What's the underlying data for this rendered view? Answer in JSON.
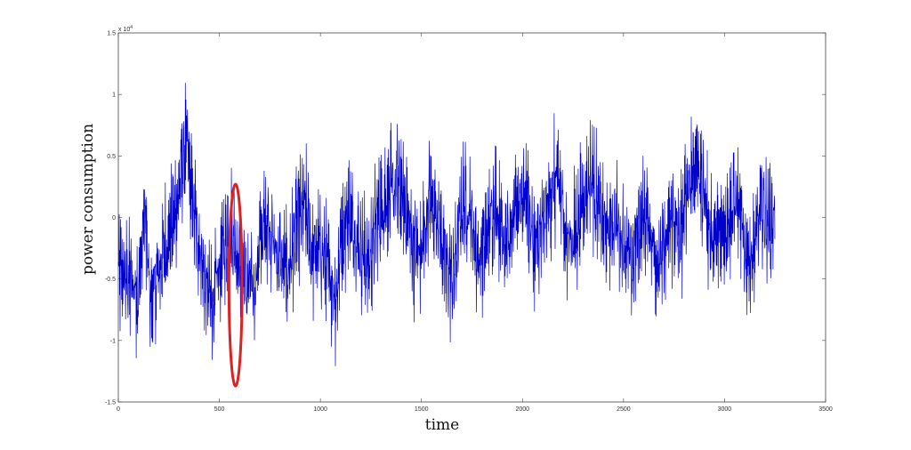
{
  "chart_data": {
    "type": "line",
    "title": "",
    "xlabel": "time",
    "ylabel": "power consumption",
    "y_multiplier_label": "x 10",
    "y_multiplier_exponent": "4",
    "xlim": [
      0,
      3500
    ],
    "ylim": [
      -1.5,
      1.5
    ],
    "xticks": [
      0,
      500,
      1000,
      1500,
      2000,
      2500,
      3000,
      3500
    ],
    "yticks": [
      -1.5,
      -1,
      -0.5,
      0,
      0.5,
      1,
      1.5
    ],
    "xtick_labels": [
      "0",
      "500",
      "1000",
      "1500",
      "2000",
      "2500",
      "3000",
      "3500"
    ],
    "ytick_labels": [
      "-1.5",
      "-1",
      "-0.5",
      "0",
      "0.5",
      "1",
      "1.5"
    ],
    "grid": false,
    "legend": "none",
    "series_color": "#0000cc",
    "highlight_color": "#dd2222",
    "highlight": {
      "x_center": 580,
      "y_center": -0.55,
      "x_radius": 130,
      "y_radius": 0.82
    },
    "series": [
      {
        "x": [
          0,
          50,
          100,
          130,
          160,
          200,
          240,
          280,
          320,
          340,
          360,
          400,
          430,
          470,
          520,
          560,
          600,
          640,
          680,
          700,
          740,
          780,
          840,
          880,
          920,
          960,
          1000,
          1040,
          1080,
          1100,
          1140,
          1200,
          1240,
          1280,
          1320,
          1380,
          1420,
          1460,
          1500,
          1540,
          1580,
          1620,
          1660,
          1700,
          1740,
          1780,
          1820,
          1860,
          1900,
          1940,
          1980,
          2020,
          2060,
          2100,
          2140,
          2180,
          2220,
          2260,
          2300,
          2340,
          2380,
          2420,
          2460,
          2500,
          2540,
          2580,
          2620,
          2660,
          2700,
          2740,
          2780,
          2820,
          2860,
          2900,
          2940,
          2980,
          3020,
          3060,
          3100,
          3140,
          3180,
          3220,
          3250
        ],
        "y": [
          -0.45,
          -0.5,
          -0.6,
          0.05,
          -0.7,
          -0.45,
          -0.2,
          0.0,
          0.45,
          0.6,
          0.2,
          -0.2,
          -0.55,
          -0.7,
          -0.25,
          -0.1,
          -0.35,
          -0.55,
          -0.55,
          -0.2,
          0.0,
          -0.3,
          -0.45,
          -0.1,
          0.1,
          -0.3,
          -0.25,
          -0.45,
          -0.65,
          -0.2,
          0.05,
          -0.25,
          -0.4,
          0.0,
          0.15,
          0.25,
          0.1,
          -0.25,
          -0.3,
          0.15,
          0.05,
          -0.4,
          -0.5,
          0.1,
          0.05,
          -0.35,
          -0.2,
          0.15,
          -0.1,
          -0.2,
          0.15,
          0.2,
          -0.3,
          -0.1,
          0.2,
          0.3,
          -0.2,
          -0.15,
          0.15,
          0.35,
          0.05,
          -0.15,
          0.0,
          -0.2,
          -0.4,
          -0.05,
          0.0,
          -0.35,
          -0.3,
          0.0,
          -0.2,
          0.3,
          0.45,
          0.2,
          -0.25,
          -0.1,
          0.0,
          0.15,
          -0.25,
          -0.35,
          0.1,
          -0.05,
          0.0
        ]
      }
    ]
  }
}
